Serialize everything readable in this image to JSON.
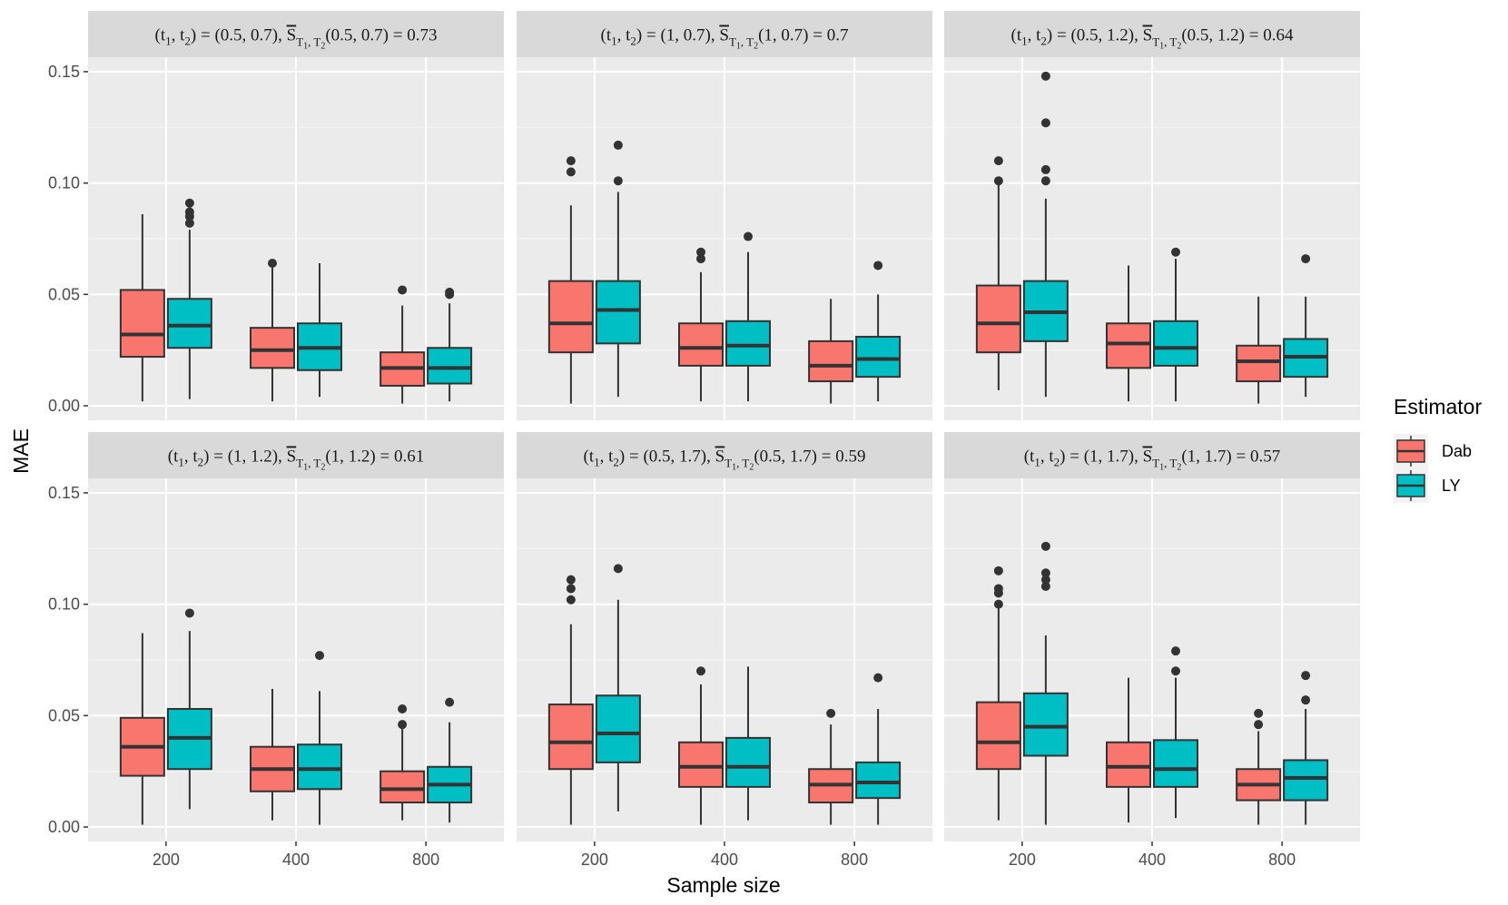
{
  "chart_data": {
    "type": "box",
    "xlabel": "Sample size",
    "ylabel": "MAE",
    "categories": [
      "200",
      "400",
      "800"
    ],
    "ylim": [
      -0.0065,
      0.1565
    ],
    "yticks": [
      0.0,
      0.05,
      0.1,
      0.15
    ],
    "ytick_labels": [
      "0.00",
      "0.05",
      "0.10",
      "0.15"
    ],
    "grid": true,
    "legend": {
      "title": "Estimator",
      "position": "right",
      "entries": [
        {
          "name": "Dab",
          "color": "#F8766D"
        },
        {
          "name": "LY",
          "color": "#00BFC4"
        }
      ]
    },
    "panels": [
      {
        "strip": {
          "t_label": "(t",
          "s1": "1",
          "comma": ", t",
          "s2": "2",
          "eq": ") = (0.5, 0.7),",
          "S": "S",
          "sub1": "T",
          "ss1": "1",
          "sub_comma": ", T",
          "ss2": "2",
          "tail": "(0.5, 0.7) = 0.73"
        },
        "series": {
          "Dab": [
            {
              "min": 0.002,
              "q1": 0.022,
              "median": 0.032,
              "q3": 0.052,
              "max": 0.086,
              "outliers": []
            },
            {
              "min": 0.002,
              "q1": 0.017,
              "median": 0.025,
              "q3": 0.035,
              "max": 0.062,
              "outliers": [
                0.064
              ]
            },
            {
              "min": 0.001,
              "q1": 0.009,
              "median": 0.017,
              "q3": 0.024,
              "max": 0.045,
              "outliers": [
                0.052
              ]
            }
          ],
          "LY": [
            {
              "min": 0.003,
              "q1": 0.026,
              "median": 0.036,
              "q3": 0.048,
              "max": 0.079,
              "outliers": [
                0.082,
                0.085,
                0.087,
                0.091
              ]
            },
            {
              "min": 0.004,
              "q1": 0.016,
              "median": 0.026,
              "q3": 0.037,
              "max": 0.064,
              "outliers": []
            },
            {
              "min": 0.002,
              "q1": 0.01,
              "median": 0.017,
              "q3": 0.026,
              "max": 0.046,
              "outliers": [
                0.05,
                0.051
              ]
            }
          ]
        }
      },
      {
        "strip": {
          "t_label": "(t",
          "s1": "1",
          "comma": ", t",
          "s2": "2",
          "eq": ") = (1, 0.7),",
          "S": "S",
          "sub1": "T",
          "ss1": "1",
          "sub_comma": ", T",
          "ss2": "2",
          "tail": "(1, 0.7) = 0.7"
        },
        "series": {
          "Dab": [
            {
              "min": 0.001,
              "q1": 0.024,
              "median": 0.037,
              "q3": 0.056,
              "max": 0.09,
              "outliers": [
                0.105,
                0.11
              ]
            },
            {
              "min": 0.002,
              "q1": 0.018,
              "median": 0.026,
              "q3": 0.037,
              "max": 0.06,
              "outliers": [
                0.066,
                0.069
              ]
            },
            {
              "min": 0.001,
              "q1": 0.011,
              "median": 0.018,
              "q3": 0.029,
              "max": 0.048,
              "outliers": []
            }
          ],
          "LY": [
            {
              "min": 0.004,
              "q1": 0.028,
              "median": 0.043,
              "q3": 0.056,
              "max": 0.096,
              "outliers": [
                0.101,
                0.117
              ]
            },
            {
              "min": 0.002,
              "q1": 0.018,
              "median": 0.027,
              "q3": 0.038,
              "max": 0.069,
              "outliers": [
                0.076
              ]
            },
            {
              "min": 0.002,
              "q1": 0.013,
              "median": 0.021,
              "q3": 0.031,
              "max": 0.05,
              "outliers": [
                0.063
              ]
            }
          ]
        }
      },
      {
        "strip": {
          "t_label": "(t",
          "s1": "1",
          "comma": ", t",
          "s2": "2",
          "eq": ") = (0.5, 1.2),",
          "S": "S",
          "sub1": "T",
          "ss1": "1",
          "sub_comma": ", T",
          "ss2": "2",
          "tail": "(0.5, 1.2) = 0.64"
        },
        "series": {
          "Dab": [
            {
              "min": 0.007,
              "q1": 0.024,
              "median": 0.037,
              "q3": 0.054,
              "max": 0.1,
              "outliers": [
                0.101,
                0.11
              ]
            },
            {
              "min": 0.002,
              "q1": 0.017,
              "median": 0.028,
              "q3": 0.037,
              "max": 0.063,
              "outliers": []
            },
            {
              "min": 0.001,
              "q1": 0.011,
              "median": 0.02,
              "q3": 0.027,
              "max": 0.049,
              "outliers": []
            }
          ],
          "LY": [
            {
              "min": 0.004,
              "q1": 0.029,
              "median": 0.042,
              "q3": 0.056,
              "max": 0.093,
              "outliers": [
                0.101,
                0.106,
                0.127,
                0.148
              ]
            },
            {
              "min": 0.002,
              "q1": 0.018,
              "median": 0.026,
              "q3": 0.038,
              "max": 0.066,
              "outliers": [
                0.069
              ]
            },
            {
              "min": 0.004,
              "q1": 0.013,
              "median": 0.022,
              "q3": 0.03,
              "max": 0.049,
              "outliers": [
                0.066
              ]
            }
          ]
        }
      },
      {
        "strip": {
          "t_label": "(t",
          "s1": "1",
          "comma": ", t",
          "s2": "2",
          "eq": ") = (1, 1.2),",
          "S": "S",
          "sub1": "T",
          "ss1": "1",
          "sub_comma": ", T",
          "ss2": "2",
          "tail": "(1, 1.2) = 0.61"
        },
        "series": {
          "Dab": [
            {
              "min": 0.001,
              "q1": 0.023,
              "median": 0.036,
              "q3": 0.049,
              "max": 0.087,
              "outliers": []
            },
            {
              "min": 0.003,
              "q1": 0.016,
              "median": 0.026,
              "q3": 0.036,
              "max": 0.062,
              "outliers": []
            },
            {
              "min": 0.003,
              "q1": 0.011,
              "median": 0.017,
              "q3": 0.025,
              "max": 0.044,
              "outliers": [
                0.046,
                0.053
              ]
            }
          ],
          "LY": [
            {
              "min": 0.008,
              "q1": 0.026,
              "median": 0.04,
              "q3": 0.053,
              "max": 0.088,
              "outliers": [
                0.096
              ]
            },
            {
              "min": 0.001,
              "q1": 0.017,
              "median": 0.026,
              "q3": 0.037,
              "max": 0.061,
              "outliers": [
                0.077
              ]
            },
            {
              "min": 0.002,
              "q1": 0.011,
              "median": 0.019,
              "q3": 0.027,
              "max": 0.047,
              "outliers": [
                0.056
              ]
            }
          ]
        }
      },
      {
        "strip": {
          "t_label": "(t",
          "s1": "1",
          "comma": ", t",
          "s2": "2",
          "eq": ") = (0.5, 1.7),",
          "S": "S",
          "sub1": "T",
          "ss1": "1",
          "sub_comma": ", T",
          "ss2": "2",
          "tail": "(0.5, 1.7) = 0.59"
        },
        "series": {
          "Dab": [
            {
              "min": 0.001,
              "q1": 0.026,
              "median": 0.038,
              "q3": 0.055,
              "max": 0.091,
              "outliers": [
                0.102,
                0.107,
                0.111
              ]
            },
            {
              "min": 0.001,
              "q1": 0.018,
              "median": 0.027,
              "q3": 0.038,
              "max": 0.064,
              "outliers": [
                0.07
              ]
            },
            {
              "min": 0.001,
              "q1": 0.011,
              "median": 0.019,
              "q3": 0.026,
              "max": 0.046,
              "outliers": [
                0.051
              ]
            }
          ],
          "LY": [
            {
              "min": 0.007,
              "q1": 0.029,
              "median": 0.042,
              "q3": 0.059,
              "max": 0.102,
              "outliers": [
                0.116
              ]
            },
            {
              "min": 0.003,
              "q1": 0.018,
              "median": 0.027,
              "q3": 0.04,
              "max": 0.072,
              "outliers": []
            },
            {
              "min": 0.001,
              "q1": 0.013,
              "median": 0.02,
              "q3": 0.029,
              "max": 0.053,
              "outliers": [
                0.067
              ]
            }
          ]
        }
      },
      {
        "strip": {
          "t_label": "(t",
          "s1": "1",
          "comma": ", t",
          "s2": "2",
          "eq": ") = (1, 1.7),",
          "S": "S",
          "sub1": "T",
          "ss1": "1",
          "sub_comma": ", T",
          "ss2": "2",
          "tail": "(1, 1.7) = 0.57"
        },
        "series": {
          "Dab": [
            {
              "min": 0.003,
              "q1": 0.026,
              "median": 0.038,
              "q3": 0.056,
              "max": 0.099,
              "outliers": [
                0.1,
                0.105,
                0.107,
                0.115
              ]
            },
            {
              "min": 0.002,
              "q1": 0.018,
              "median": 0.027,
              "q3": 0.038,
              "max": 0.067,
              "outliers": []
            },
            {
              "min": 0.001,
              "q1": 0.012,
              "median": 0.019,
              "q3": 0.026,
              "max": 0.043,
              "outliers": [
                0.046,
                0.051
              ]
            }
          ],
          "LY": [
            {
              "min": 0.001,
              "q1": 0.032,
              "median": 0.045,
              "q3": 0.06,
              "max": 0.086,
              "outliers": [
                0.108,
                0.111,
                0.114,
                0.126
              ]
            },
            {
              "min": 0.004,
              "q1": 0.018,
              "median": 0.026,
              "q3": 0.039,
              "max": 0.067,
              "outliers": [
                0.07,
                0.079
              ]
            },
            {
              "min": 0.001,
              "q1": 0.012,
              "median": 0.022,
              "q3": 0.03,
              "max": 0.053,
              "outliers": [
                0.057,
                0.068
              ]
            }
          ]
        }
      }
    ]
  }
}
